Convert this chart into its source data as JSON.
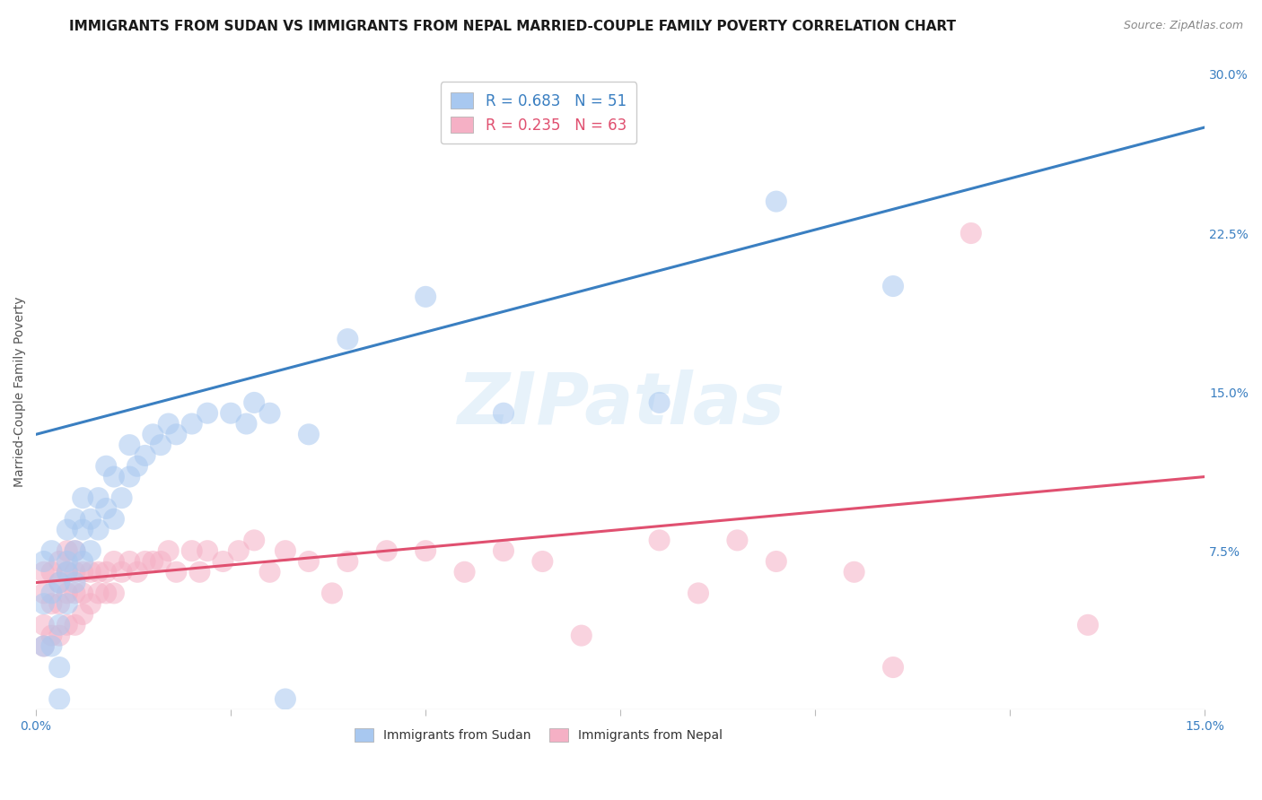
{
  "title": "IMMIGRANTS FROM SUDAN VS IMMIGRANTS FROM NEPAL MARRIED-COUPLE FAMILY POVERTY CORRELATION CHART",
  "source": "Source: ZipAtlas.com",
  "ylabel": "Married-Couple Family Poverty",
  "xlim": [
    0.0,
    0.15
  ],
  "ylim": [
    0.0,
    0.3
  ],
  "xticks": [
    0.0,
    0.025,
    0.05,
    0.075,
    0.1,
    0.125,
    0.15
  ],
  "xticklabels": [
    "0.0%",
    "",
    "",
    "",
    "",
    "",
    "15.0%"
  ],
  "yticks_right": [
    0.0,
    0.075,
    0.15,
    0.225,
    0.3
  ],
  "yticklabels_right": [
    "",
    "7.5%",
    "15.0%",
    "22.5%",
    "30.0%"
  ],
  "sudan_color": "#a8c8f0",
  "nepal_color": "#f5b0c5",
  "sudan_line_color": "#3a7fc1",
  "nepal_line_color": "#e05070",
  "legend_label_sudan": "R = 0.683   N = 51",
  "legend_label_nepal": "R = 0.235   N = 63",
  "legend_label_bottom_sudan": "Immigrants from Sudan",
  "legend_label_bottom_nepal": "Immigrants from Nepal",
  "watermark": "ZIPatlas",
  "background_color": "#ffffff",
  "grid_color": "#cccccc",
  "title_fontsize": 11,
  "axis_label_fontsize": 10,
  "tick_fontsize": 10,
  "sudan_scatter": {
    "x": [
      0.001,
      0.001,
      0.001,
      0.002,
      0.002,
      0.002,
      0.003,
      0.003,
      0.003,
      0.003,
      0.004,
      0.004,
      0.004,
      0.004,
      0.005,
      0.005,
      0.005,
      0.006,
      0.006,
      0.006,
      0.007,
      0.007,
      0.008,
      0.008,
      0.009,
      0.009,
      0.01,
      0.01,
      0.011,
      0.012,
      0.012,
      0.013,
      0.014,
      0.015,
      0.016,
      0.017,
      0.018,
      0.02,
      0.022,
      0.025,
      0.027,
      0.028,
      0.03,
      0.032,
      0.035,
      0.04,
      0.05,
      0.06,
      0.08,
      0.095,
      0.11
    ],
    "y": [
      0.03,
      0.05,
      0.07,
      0.03,
      0.055,
      0.075,
      0.04,
      0.06,
      0.02,
      0.005,
      0.05,
      0.065,
      0.07,
      0.085,
      0.06,
      0.075,
      0.09,
      0.07,
      0.085,
      0.1,
      0.075,
      0.09,
      0.085,
      0.1,
      0.095,
      0.115,
      0.09,
      0.11,
      0.1,
      0.11,
      0.125,
      0.115,
      0.12,
      0.13,
      0.125,
      0.135,
      0.13,
      0.135,
      0.14,
      0.14,
      0.135,
      0.145,
      0.14,
      0.005,
      0.13,
      0.175,
      0.195,
      0.14,
      0.145,
      0.24,
      0.2
    ]
  },
  "nepal_scatter": {
    "x": [
      0.001,
      0.001,
      0.001,
      0.001,
      0.002,
      0.002,
      0.002,
      0.003,
      0.003,
      0.003,
      0.003,
      0.004,
      0.004,
      0.004,
      0.004,
      0.005,
      0.005,
      0.005,
      0.005,
      0.006,
      0.006,
      0.006,
      0.007,
      0.007,
      0.008,
      0.008,
      0.009,
      0.009,
      0.01,
      0.01,
      0.011,
      0.012,
      0.013,
      0.014,
      0.015,
      0.016,
      0.017,
      0.018,
      0.02,
      0.021,
      0.022,
      0.024,
      0.026,
      0.028,
      0.03,
      0.032,
      0.035,
      0.038,
      0.04,
      0.045,
      0.05,
      0.055,
      0.06,
      0.065,
      0.07,
      0.08,
      0.085,
      0.09,
      0.095,
      0.105,
      0.11,
      0.12,
      0.135
    ],
    "y": [
      0.03,
      0.04,
      0.055,
      0.065,
      0.035,
      0.05,
      0.065,
      0.035,
      0.05,
      0.06,
      0.07,
      0.04,
      0.055,
      0.065,
      0.075,
      0.04,
      0.055,
      0.065,
      0.075,
      0.045,
      0.055,
      0.065,
      0.05,
      0.065,
      0.055,
      0.065,
      0.055,
      0.065,
      0.055,
      0.07,
      0.065,
      0.07,
      0.065,
      0.07,
      0.07,
      0.07,
      0.075,
      0.065,
      0.075,
      0.065,
      0.075,
      0.07,
      0.075,
      0.08,
      0.065,
      0.075,
      0.07,
      0.055,
      0.07,
      0.075,
      0.075,
      0.065,
      0.075,
      0.07,
      0.035,
      0.08,
      0.055,
      0.08,
      0.07,
      0.065,
      0.02,
      0.225,
      0.04
    ]
  },
  "sudan_regline_x": [
    0.0,
    0.15
  ],
  "sudan_regline_y": [
    0.13,
    0.275
  ],
  "nepal_regline_x": [
    0.0,
    0.15
  ],
  "nepal_regline_y": [
    0.06,
    0.11
  ]
}
